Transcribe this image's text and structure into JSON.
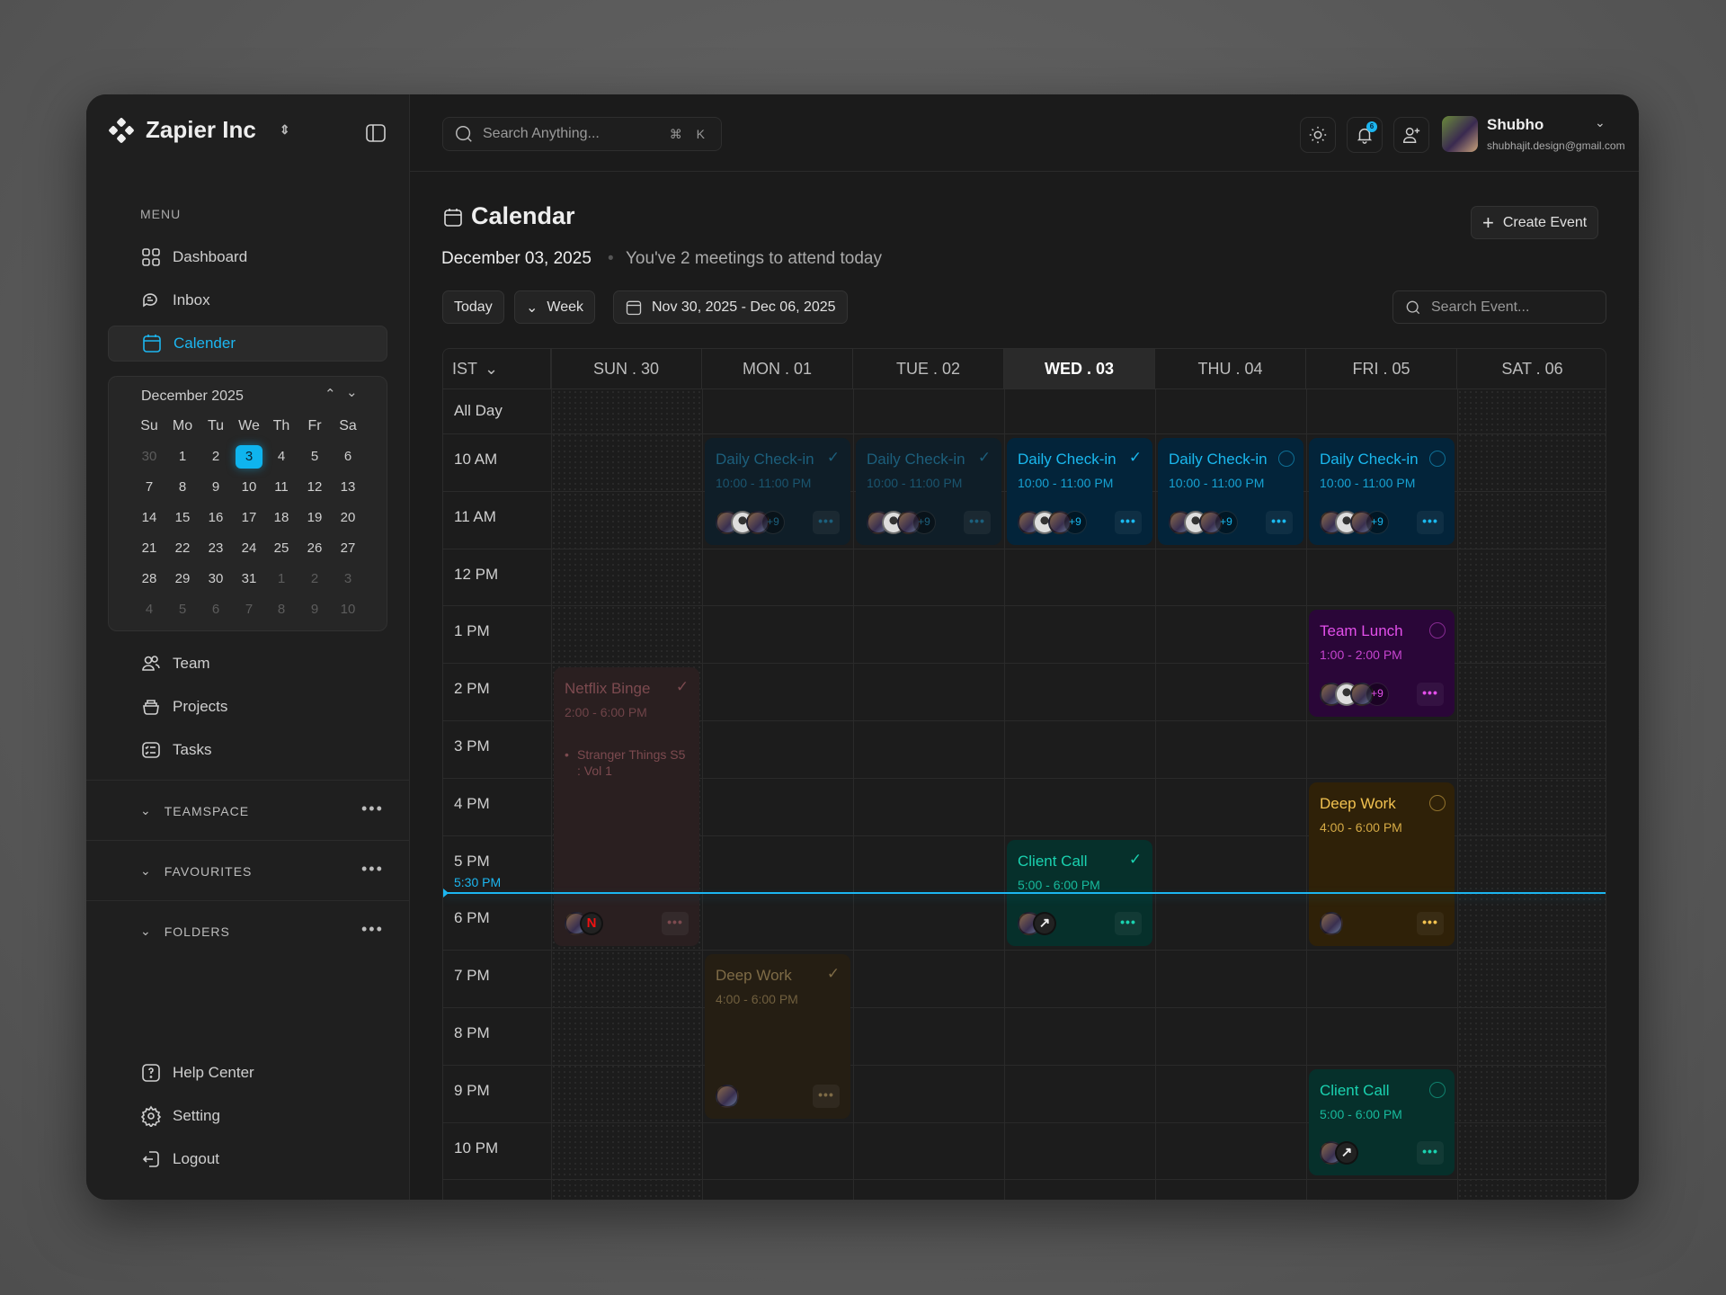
{
  "sidebar": {
    "brand": "Zapier Inc",
    "menu_label": "MENU",
    "items": [
      {
        "label": "Dashboard",
        "icon": "grid-icon"
      },
      {
        "label": "Inbox",
        "icon": "chat-icon"
      },
      {
        "label": "Calender",
        "icon": "calendar-icon",
        "active": true
      }
    ],
    "mini_calendar": {
      "title": "December 2025",
      "weekdays": [
        "Su",
        "Mo",
        "Tu",
        "We",
        "Th",
        "Fr",
        "Sa"
      ],
      "weeks": [
        [
          {
            "d": "30",
            "m": true
          },
          {
            "d": "1"
          },
          {
            "d": "2"
          },
          {
            "d": "3",
            "sel": true
          },
          {
            "d": "4"
          },
          {
            "d": "5"
          },
          {
            "d": "6"
          }
        ],
        [
          {
            "d": "7"
          },
          {
            "d": "8"
          },
          {
            "d": "9"
          },
          {
            "d": "10"
          },
          {
            "d": "11"
          },
          {
            "d": "12"
          },
          {
            "d": "13"
          }
        ],
        [
          {
            "d": "14"
          },
          {
            "d": "15"
          },
          {
            "d": "16"
          },
          {
            "d": "17"
          },
          {
            "d": "18"
          },
          {
            "d": "19"
          },
          {
            "d": "20"
          }
        ],
        [
          {
            "d": "21"
          },
          {
            "d": "22"
          },
          {
            "d": "23"
          },
          {
            "d": "24"
          },
          {
            "d": "25"
          },
          {
            "d": "26"
          },
          {
            "d": "27"
          }
        ],
        [
          {
            "d": "28"
          },
          {
            "d": "29"
          },
          {
            "d": "30"
          },
          {
            "d": "31"
          },
          {
            "d": "1",
            "m": true
          },
          {
            "d": "2",
            "m": true
          },
          {
            "d": "3",
            "m": true
          }
        ],
        [
          {
            "d": "4",
            "m": true
          },
          {
            "d": "5",
            "m": true
          },
          {
            "d": "6",
            "m": true
          },
          {
            "d": "7",
            "m": true
          },
          {
            "d": "8",
            "m": true
          },
          {
            "d": "9",
            "m": true
          },
          {
            "d": "10",
            "m": true
          }
        ]
      ]
    },
    "items2": [
      {
        "label": "Team"
      },
      {
        "label": "Projects"
      },
      {
        "label": "Tasks"
      }
    ],
    "sections": [
      "TEAMSPACE",
      "FAVOURITES",
      "FOLDERS"
    ],
    "footer": [
      {
        "label": "Help Center"
      },
      {
        "label": "Setting"
      },
      {
        "label": "Logout"
      }
    ]
  },
  "topbar": {
    "search_placeholder": "Search Anything...",
    "shortcut": "⌘ K",
    "notification_count": "6",
    "user": {
      "name": "Shubho",
      "email": "shubhajit.design@gmail.com"
    }
  },
  "page": {
    "title": "Calendar",
    "create_label": "Create Event",
    "date": "December 03, 2025",
    "subtitle": "You've 2 meetings to attend today",
    "today_label": "Today",
    "view_label": "Week",
    "range": "Nov 30, 2025 - Dec 06, 2025",
    "search_event_placeholder": "Search Event..."
  },
  "grid": {
    "timezone": "IST",
    "all_day": "All Day",
    "days": [
      "SUN . 30",
      "MON . 01",
      "TUE . 02",
      "WED . 03",
      "THU . 04",
      "FRI . 05",
      "SAT . 06"
    ],
    "today_index": 3,
    "hours": [
      "10 AM",
      "11 AM",
      "12 PM",
      "1 PM",
      "2 PM",
      "3 PM",
      "4 PM",
      "5 PM",
      "6 PM",
      "7 PM",
      "8 PM",
      "9 PM",
      "10 PM"
    ],
    "now_label": "5:30 PM",
    "now_color": "#1cb6f0"
  },
  "events": [
    {
      "title": "Daily Check-in",
      "time": "10:00 - 11:00 PM",
      "day": 1,
      "start_hour": 10,
      "end_hour": 12,
      "theme": "blue",
      "dim": true,
      "done": true,
      "extra": "+9",
      "avatars": 3
    },
    {
      "title": "Daily Check-in",
      "time": "10:00 - 11:00 PM",
      "day": 2,
      "start_hour": 10,
      "end_hour": 12,
      "theme": "blue",
      "dim": true,
      "done": true,
      "extra": "+9",
      "avatars": 3
    },
    {
      "title": "Daily Check-in",
      "time": "10:00 - 11:00 PM",
      "day": 3,
      "start_hour": 10,
      "end_hour": 12,
      "theme": "blue",
      "done": true,
      "extra": "+9",
      "avatars": 3
    },
    {
      "title": "Daily Check-in",
      "time": "10:00 - 11:00 PM",
      "day": 4,
      "start_hour": 10,
      "end_hour": 12,
      "theme": "blue",
      "done": false,
      "extra": "+9",
      "avatars": 3
    },
    {
      "title": "Daily Check-in",
      "time": "10:00 - 11:00 PM",
      "day": 5,
      "start_hour": 10,
      "end_hour": 12,
      "theme": "blue",
      "done": false,
      "extra": "+9",
      "avatars": 3
    },
    {
      "title": "Team Lunch",
      "time": "1:00 - 2:00 PM",
      "day": 5,
      "start_hour": 13,
      "end_hour": 15,
      "theme": "purple",
      "done": false,
      "extra": "+9",
      "avatars": 3
    },
    {
      "title": "Netflix Binge",
      "time": "2:00 - 6:00 PM",
      "day": 0,
      "start_hour": 14,
      "end_hour": 19,
      "theme": "red",
      "dim": true,
      "done": true,
      "note": "Stranger Things S5 : Vol 1",
      "avatars": 1,
      "logo": "N"
    },
    {
      "title": "Deep Work",
      "time": "4:00 - 6:00 PM",
      "day": 5,
      "start_hour": 16,
      "end_hour": 19,
      "theme": "amber",
      "done": false,
      "avatars": 1
    },
    {
      "title": "Client Call",
      "time": "5:00 - 6:00 PM",
      "day": 3,
      "start_hour": 17,
      "end_hour": 19,
      "theme": "green",
      "done": true,
      "avatars": 1,
      "logo": "↗"
    },
    {
      "title": "Deep Work",
      "time": "4:00 - 6:00 PM",
      "day": 1,
      "start_hour": 19,
      "end_hour": 22,
      "theme": "amber",
      "dim": true,
      "done": true,
      "avatars": 1
    },
    {
      "title": "Client Call",
      "time": "5:00 - 6:00 PM",
      "day": 5,
      "start_hour": 21,
      "end_hour": 23,
      "theme": "green",
      "done": false,
      "avatars": 1,
      "logo": "↗"
    }
  ],
  "themes": {
    "blue": {
      "bg": "#03243a",
      "fg": "#1ab8ee"
    },
    "blue_dim": {
      "bg": "#0f1e28",
      "fg": "#1c5f7c"
    },
    "purple": {
      "bg": "#2a0638",
      "fg": "#e24fea"
    },
    "red_dim": {
      "bg": "#2a1f20",
      "fg": "#7c4a4f"
    },
    "amber": {
      "bg": "#2f2108",
      "fg": "#f2c250"
    },
    "amber_dim": {
      "bg": "#251e13",
      "fg": "#7e6b46"
    },
    "green": {
      "bg": "#06302b",
      "fg": "#1ad2b0"
    }
  }
}
